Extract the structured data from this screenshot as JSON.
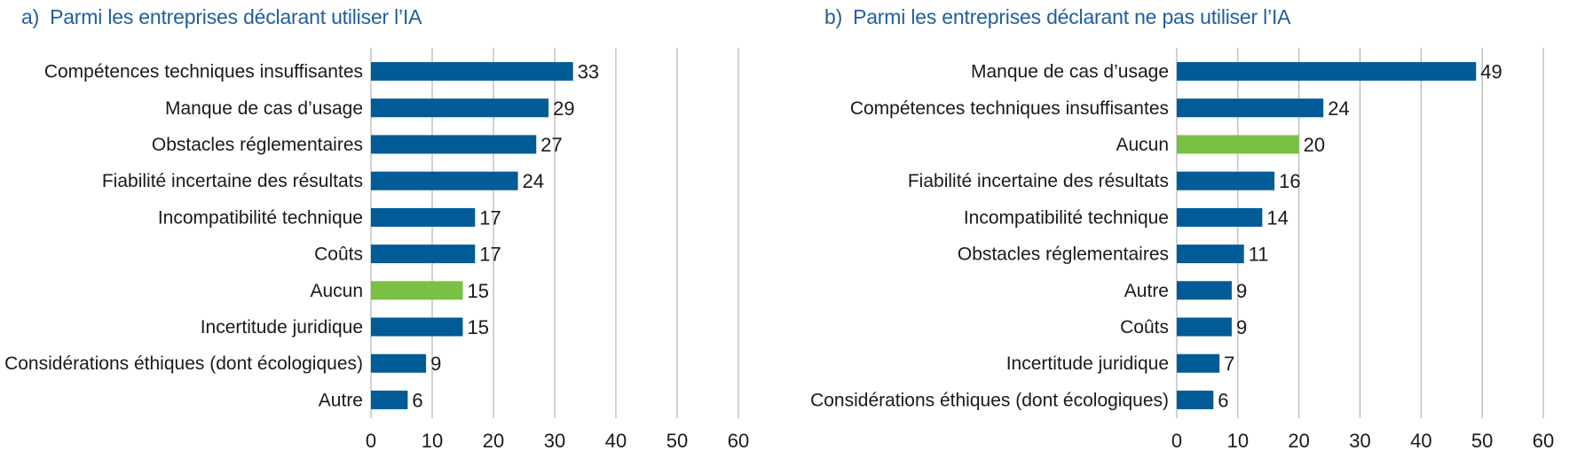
{
  "colors": {
    "bar": "#005b96",
    "highlight": "#7ac143",
    "grid": "#b5b5b5",
    "title": "#1f5f9f"
  },
  "chart_data": [
    {
      "type": "bar",
      "orientation": "horizontal",
      "panel_letter": "a)",
      "title": "Parmi les entreprises déclarant utiliser l’IA",
      "categories": [
        "Compétences techniques insuffisantes",
        "Manque de cas d’usage",
        "Obstacles réglementaires",
        "Fiabilité incertaine des résultats",
        "Incompatibilité technique",
        "Coûts",
        "Aucun",
        "Incertitude juridique",
        "Considérations éthiques (dont écologiques)",
        "Autre"
      ],
      "values": [
        33,
        29,
        27,
        24,
        17,
        17,
        15,
        15,
        9,
        6
      ],
      "highlight": [
        "Aucun"
      ],
      "xlim": [
        0,
        60
      ],
      "xticks": [
        0,
        10,
        20,
        30,
        40,
        50,
        60
      ],
      "grid": true,
      "xlabel": "",
      "ylabel": ""
    },
    {
      "type": "bar",
      "orientation": "horizontal",
      "panel_letter": "b)",
      "title": "Parmi les entreprises déclarant ne pas utiliser l’IA",
      "categories": [
        "Manque de cas d’usage",
        "Compétences techniques insuffisantes",
        "Aucun",
        "Fiabilité incertaine des résultats",
        "Incompatibilité technique",
        "Obstacles réglementaires",
        "Autre",
        "Coûts",
        "Incertitude juridique",
        "Considérations éthiques (dont écologiques)"
      ],
      "values": [
        49,
        24,
        20,
        16,
        14,
        11,
        9,
        9,
        7,
        6
      ],
      "highlight": [
        "Aucun"
      ],
      "xlim": [
        0,
        60
      ],
      "xticks": [
        0,
        10,
        20,
        30,
        40,
        50,
        60
      ],
      "grid": true,
      "xlabel": "",
      "ylabel": ""
    }
  ]
}
